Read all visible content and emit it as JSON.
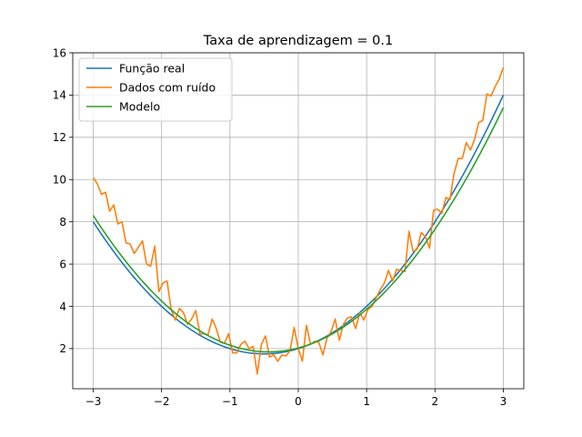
{
  "chart_data": {
    "type": "line",
    "title": "Taxa de aprendizagem = 0.1",
    "xlabel": "",
    "ylabel": "",
    "xlim": [
      -3.3,
      3.3
    ],
    "ylim": [
      0.1,
      16
    ],
    "x_ticks": [
      -3,
      -2,
      -1,
      0,
      1,
      2,
      3
    ],
    "x_tick_labels": [
      "−3",
      "−2",
      "−1",
      "0",
      "1",
      "2",
      "3"
    ],
    "y_ticks": [
      2,
      4,
      6,
      8,
      10,
      12,
      14,
      16
    ],
    "y_tick_labels": [
      "2",
      "4",
      "6",
      "8",
      "10",
      "12",
      "14",
      "16"
    ],
    "grid": true,
    "legend_position": "top-left",
    "series": [
      {
        "name": "Função real",
        "color": "#1f77b4",
        "kind": "quadratic",
        "coefficients": {
          "a": 1,
          "b": 1,
          "c": 2
        },
        "x_range": [
          -3,
          3
        ]
      },
      {
        "name": "Dados com ruído",
        "color": "#ff7f0e",
        "kind": "points",
        "x_range": [
          -3,
          3
        ],
        "values": [
          10.1,
          9.8,
          9.3,
          9.4,
          8.5,
          8.8,
          7.9,
          8.0,
          7.0,
          6.95,
          6.5,
          6.8,
          7.1,
          6.0,
          5.9,
          6.85,
          4.7,
          5.1,
          5.2,
          3.85,
          3.35,
          3.9,
          3.7,
          3.15,
          3.4,
          3.8,
          2.7,
          2.7,
          2.65,
          3.4,
          2.95,
          2.3,
          2.25,
          2.7,
          1.8,
          1.8,
          2.2,
          2.35,
          2.0,
          2.1,
          0.8,
          2.2,
          2.6,
          1.6,
          1.7,
          1.4,
          1.7,
          1.65,
          1.9,
          3.0,
          2.0,
          1.4,
          3.1,
          2.2,
          2.35,
          2.3,
          1.7,
          2.5,
          2.8,
          3.4,
          2.4,
          3.15,
          3.45,
          3.5,
          2.95,
          3.7,
          3.35,
          3.85,
          4.0,
          4.4,
          4.8,
          5.1,
          5.7,
          5.2,
          5.75,
          5.7,
          5.65,
          7.55,
          6.6,
          6.7,
          7.5,
          7.3,
          6.75,
          8.55,
          8.6,
          8.4,
          9.15,
          9.05,
          10.3,
          11.0,
          11.0,
          11.75,
          11.4,
          11.9,
          12.7,
          12.8,
          14.05,
          13.95,
          14.4,
          14.75,
          15.3
        ]
      },
      {
        "name": "Modelo",
        "color": "#2ca02c",
        "kind": "quadratic",
        "coefficients": {
          "a": 0.98,
          "b": 0.85,
          "c": 2.03
        },
        "x_range": [
          -3,
          3
        ]
      }
    ]
  }
}
